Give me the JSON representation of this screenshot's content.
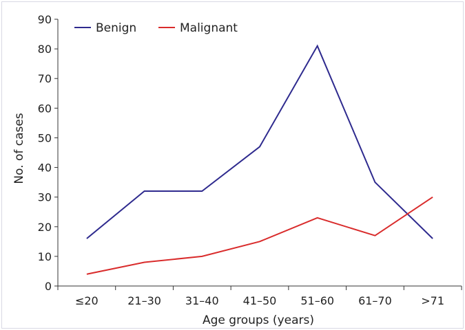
{
  "chart_data": {
    "type": "line",
    "title": "",
    "xlabel": "Age groups (years)",
    "ylabel": "No. of cases",
    "ylim": [
      0,
      90
    ],
    "yticks": [
      0,
      10,
      20,
      30,
      40,
      50,
      60,
      70,
      80,
      90
    ],
    "categories": [
      "≤20",
      "21–30",
      "31–40",
      "41–50",
      "51–60",
      "61–70",
      ">71"
    ],
    "grid": false,
    "legend": {
      "position": "top-left",
      "orientation": "horizontal"
    },
    "series": [
      {
        "name": "Benign",
        "color": "#2e2a8e",
        "values": [
          16,
          32,
          32,
          47,
          81,
          35,
          16
        ]
      },
      {
        "name": "Malignant",
        "color": "#d92b2b",
        "values": [
          4,
          8,
          10,
          15,
          23,
          17,
          30
        ]
      }
    ]
  }
}
